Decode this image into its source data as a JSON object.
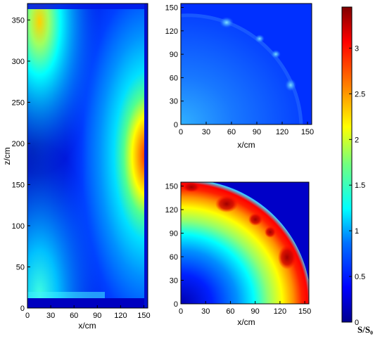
{
  "chart_data": [
    {
      "type": "heatmap",
      "panel": "vertical-section",
      "xlabel": "x/cm",
      "ylabel": "z/cm",
      "xlim": [
        0,
        155
      ],
      "ylim": [
        0,
        370
      ],
      "xticks": [
        "0",
        "30",
        "60",
        "90",
        "120",
        "150"
      ],
      "yticks": [
        "0",
        "50",
        "100",
        "150",
        "200",
        "250",
        "300",
        "350"
      ]
    },
    {
      "type": "heatmap",
      "panel": "top-cross-section",
      "xlabel": "x/cm",
      "ylabel": "",
      "xlim": [
        0,
        155
      ],
      "ylim": [
        0,
        155
      ],
      "xticks": [
        "0",
        "30",
        "60",
        "90",
        "120",
        "150"
      ],
      "yticks": [
        "0",
        "30",
        "60",
        "90",
        "120",
        "150"
      ]
    },
    {
      "type": "heatmap",
      "panel": "bottom-cross-section",
      "xlabel": "x/cm",
      "ylabel": "",
      "xlim": [
        0,
        155
      ],
      "ylim": [
        0,
        155
      ],
      "xticks": [
        "0",
        "30",
        "60",
        "90",
        "120",
        "150"
      ],
      "yticks": [
        "0",
        "30",
        "60",
        "90",
        "120",
        "150"
      ]
    }
  ],
  "colorbar": {
    "title": "S/S₀",
    "range": [
      0,
      3.45
    ],
    "ticks": [
      "0",
      "0.5",
      "1",
      "1.5",
      "2",
      "2.5",
      "3"
    ],
    "colormap": [
      "#00008f",
      "#0000ff",
      "#0080ff",
      "#00ffff",
      "#80ff80",
      "#ffff00",
      "#ff8000",
      "#ff0000",
      "#800000"
    ]
  }
}
